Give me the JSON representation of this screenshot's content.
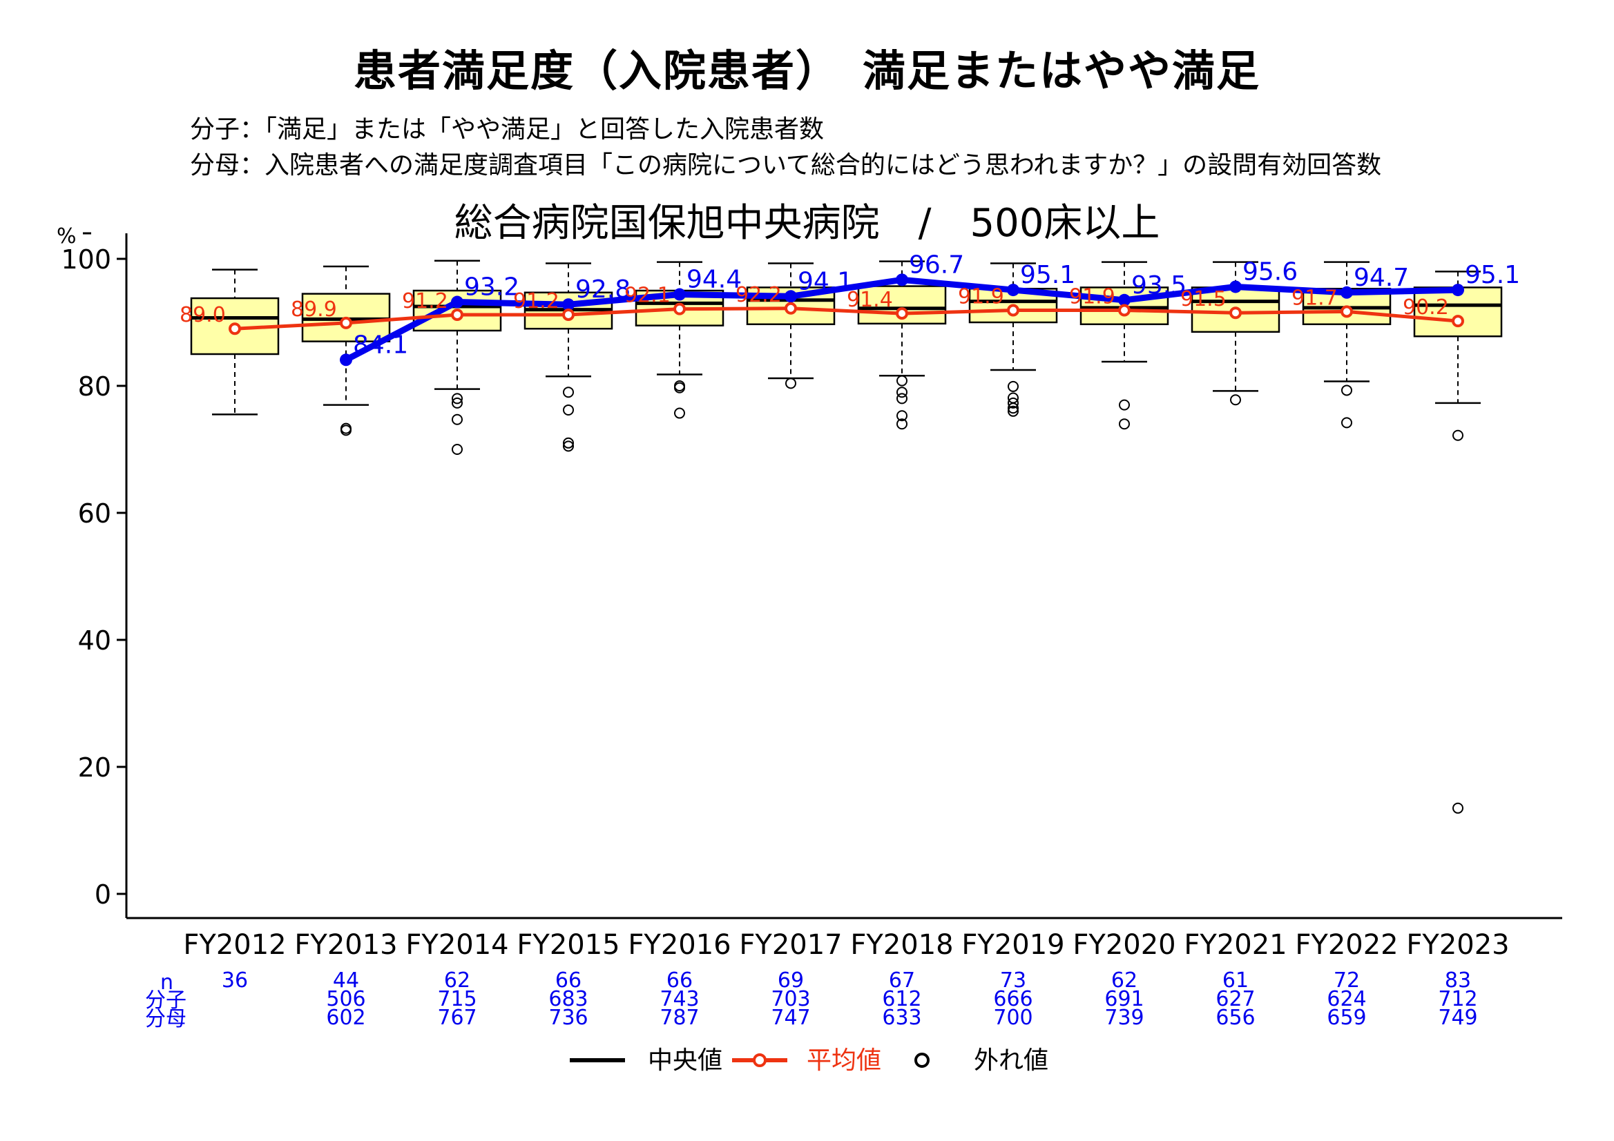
{
  "title": "患者満足度（入院患者）　満足またはやや満足",
  "numerator_def": "分子：「満足」または「やや満足」と回答した入院患者数",
  "denominator_def": "分母：入院患者への満足度調査項目「この病院について総合的にはどう思われますか？」の設問有効回答数",
  "subtitle": "総合病院国保旭中央病院　/　500床以上",
  "table_labels": {
    "n": "n",
    "numerator": "分子",
    "denominator": "分母"
  },
  "legend": {
    "median": "中央値",
    "mean": "平均値",
    "outlier": "外れ値"
  },
  "colors": {
    "box_fill": "#ffffa8",
    "hospital_line": "#0000ee",
    "mean_line": "#ee3311",
    "median_line": "#000000"
  },
  "chart_data": {
    "type": "box",
    "ylabel": "%",
    "ylim": [
      0,
      100
    ],
    "yticks": [
      0,
      20,
      40,
      60,
      80,
      100
    ],
    "categories": [
      "FY2012",
      "FY2013",
      "FY2014",
      "FY2015",
      "FY2016",
      "FY2017",
      "FY2018",
      "FY2019",
      "FY2020",
      "FY2021",
      "FY2022",
      "FY2023"
    ],
    "boxes": [
      {
        "whisker_low": 75.5,
        "q1": 85.0,
        "median": 90.7,
        "q3": 93.8,
        "whisker_high": 98.3
      },
      {
        "whisker_low": 77.0,
        "q1": 87.0,
        "median": 90.5,
        "q3": 94.5,
        "whisker_high": 98.8
      },
      {
        "whisker_low": 79.5,
        "q1": 88.7,
        "median": 92.5,
        "q3": 95.0,
        "whisker_high": 99.7
      },
      {
        "whisker_low": 81.5,
        "q1": 89.0,
        "median": 92.0,
        "q3": 94.7,
        "whisker_high": 99.3
      },
      {
        "whisker_low": 81.8,
        "q1": 89.5,
        "median": 93.0,
        "q3": 95.0,
        "whisker_high": 99.5
      },
      {
        "whisker_low": 81.2,
        "q1": 89.7,
        "median": 93.5,
        "q3": 95.5,
        "whisker_high": 99.3
      },
      {
        "whisker_low": 81.6,
        "q1": 89.8,
        "median": 92.2,
        "q3": 95.7,
        "whisker_high": 99.6
      },
      {
        "whisker_low": 82.5,
        "q1": 90.0,
        "median": 93.3,
        "q3": 95.3,
        "whisker_high": 99.3
      },
      {
        "whisker_low": 83.8,
        "q1": 89.7,
        "median": 92.3,
        "q3": 95.5,
        "whisker_high": 99.5
      },
      {
        "whisker_low": 79.2,
        "q1": 88.5,
        "median": 93.3,
        "q3": 95.5,
        "whisker_high": 99.5
      },
      {
        "whisker_low": 80.7,
        "q1": 89.7,
        "median": 92.3,
        "q3": 95.3,
        "whisker_high": 99.5
      },
      {
        "whisker_low": 77.3,
        "q1": 87.8,
        "median": 92.7,
        "q3": 95.5,
        "whisker_high": 98.0
      }
    ],
    "outliers": [
      [],
      [
        73.0,
        73.3
      ],
      [
        78.0,
        77.3,
        74.7,
        70.0
      ],
      [
        79.0,
        76.2,
        71.0,
        70.5
      ],
      [
        80.0,
        79.7,
        75.7
      ],
      [
        80.4
      ],
      [
        80.8,
        79.0,
        78.0,
        75.3,
        74.0
      ],
      [
        79.9,
        78.1,
        77.3,
        76.5,
        76.0
      ],
      [
        77.0,
        74.0
      ],
      [
        77.8
      ],
      [
        79.3,
        74.2
      ],
      [
        72.2,
        13.5
      ]
    ],
    "series": [
      {
        "name": "",
        "kind": "hospital",
        "values": [
          null,
          84.1,
          93.2,
          92.8,
          94.4,
          94.1,
          96.7,
          95.1,
          93.5,
          95.6,
          94.7,
          95.1
        ],
        "labels": [
          "",
          "84.1",
          "93.2",
          "92.8",
          "94.4",
          "94.1",
          "96.7",
          "95.1",
          "93.5",
          "95.6",
          "94.7",
          "95.1"
        ]
      },
      {
        "name": "平均値",
        "kind": "mean",
        "values": [
          89.0,
          89.9,
          91.2,
          91.2,
          92.1,
          92.2,
          91.4,
          91.9,
          91.9,
          91.5,
          91.7,
          90.2
        ],
        "labels": [
          "89.0",
          "89.9",
          "91.2",
          "91.2",
          "92.1",
          "92.2",
          "91.4",
          "91.9",
          "91.9",
          "91.5",
          "91.7",
          "90.2"
        ]
      }
    ],
    "table": {
      "n": [
        "36",
        "44",
        "62",
        "66",
        "66",
        "69",
        "67",
        "73",
        "62",
        "61",
        "72",
        "83"
      ],
      "numerator": [
        "",
        "506",
        "715",
        "683",
        "743",
        "703",
        "612",
        "666",
        "691",
        "627",
        "624",
        "712"
      ],
      "denominator": [
        "",
        "602",
        "767",
        "736",
        "787",
        "747",
        "633",
        "700",
        "739",
        "656",
        "659",
        "749"
      ]
    },
    "legend_position": "bottom"
  }
}
